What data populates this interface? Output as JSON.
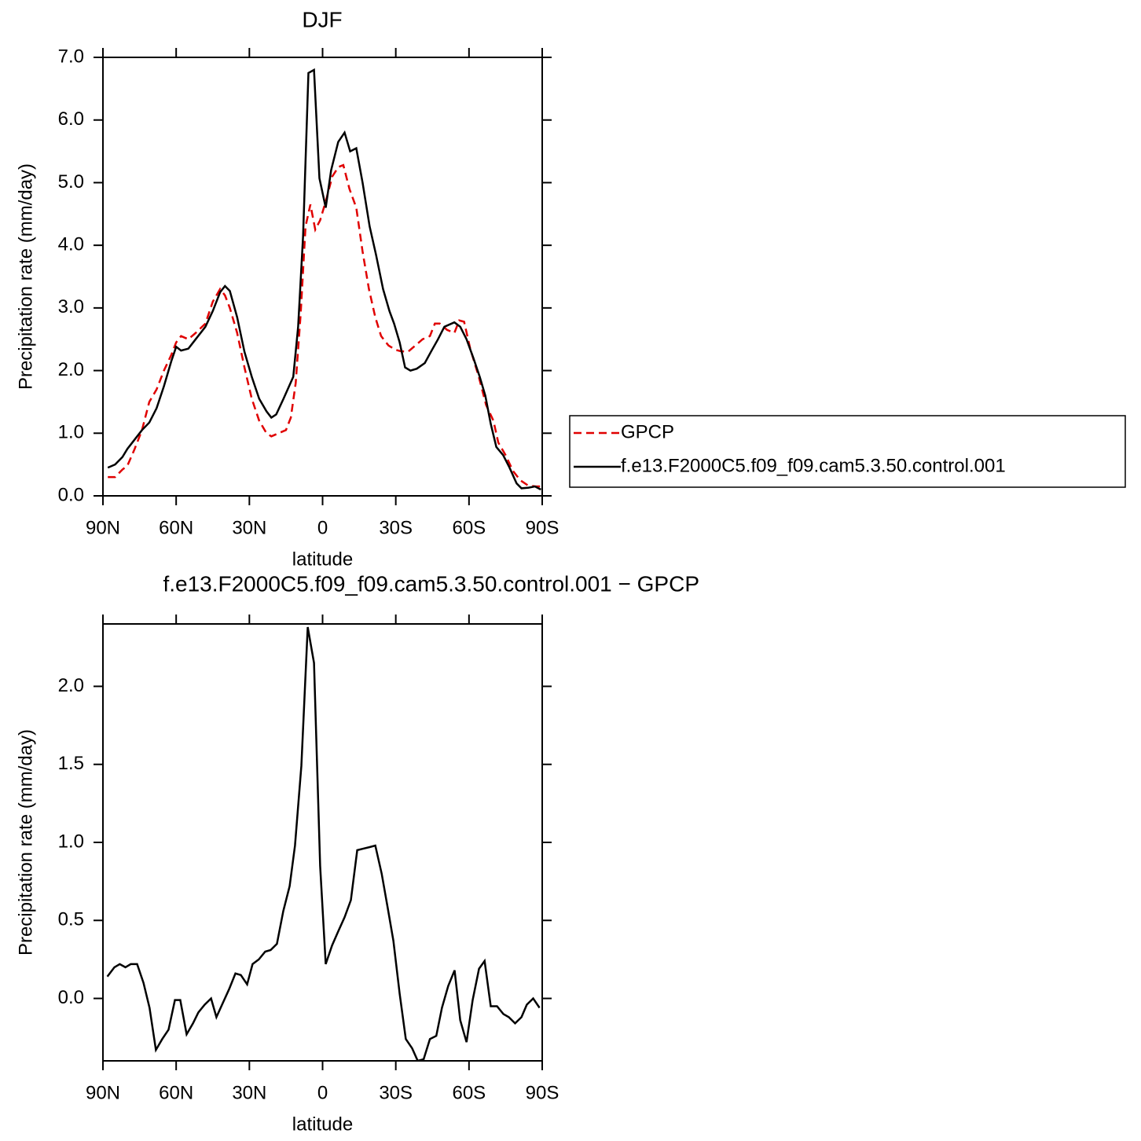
{
  "chart_data": [
    {
      "type": "line",
      "title": "DJF",
      "xlabel": "latitude",
      "ylabel": "Precipitation rate (mm/day)",
      "xlim": [
        90,
        -90
      ],
      "xticks": [
        {
          "value": 90,
          "label": "90N"
        },
        {
          "value": 60,
          "label": "60N"
        },
        {
          "value": 30,
          "label": "30N"
        },
        0,
        {
          "value": -30,
          "label": "30S"
        },
        {
          "value": -60,
          "label": "60S"
        },
        {
          "value": -90,
          "label": "90S"
        }
      ],
      "ylim": [
        0,
        7
      ],
      "yticks": [
        {
          "value": 0,
          "label": "0.0"
        },
        {
          "value": 1,
          "label": "1.0"
        },
        {
          "value": 2,
          "label": "2.0"
        },
        {
          "value": 3,
          "label": "3.0"
        },
        {
          "value": 4,
          "label": "4.0"
        },
        {
          "value": 5,
          "label": "5.0"
        },
        {
          "value": 6,
          "label": "6.0"
        },
        {
          "value": 7,
          "label": "7.0"
        }
      ],
      "legend": "right",
      "series": [
        {
          "name": "GPCP",
          "color": "#e00000",
          "dashed": true,
          "x": [
            88,
            85,
            82,
            80,
            77,
            74,
            71,
            68,
            65,
            62,
            60,
            58,
            55,
            52,
            48,
            45,
            42,
            40,
            38,
            35,
            32,
            29,
            26,
            23,
            21,
            18,
            15,
            13,
            11,
            9,
            7,
            5,
            3,
            1,
            -1.3,
            -4,
            -6.5,
            -8.5,
            -11,
            -13.8,
            -16.4,
            -19,
            -21.6,
            -24,
            -27,
            -30,
            -32,
            -35,
            -38,
            -41,
            -44,
            -46,
            -48,
            -51,
            -54,
            -56,
            -58,
            -60.5,
            -64,
            -67,
            -70,
            -72,
            -75,
            -78,
            -81,
            -84,
            -87,
            -89.5
          ],
          "values": [
            0.3,
            0.3,
            0.42,
            0.48,
            0.75,
            1.05,
            1.5,
            1.7,
            2.0,
            2.25,
            2.45,
            2.55,
            2.5,
            2.6,
            2.75,
            3.1,
            3.3,
            3.2,
            3.0,
            2.6,
            2.05,
            1.55,
            1.2,
            1.0,
            0.95,
            1.0,
            1.05,
            1.25,
            1.8,
            2.9,
            4.3,
            4.65,
            4.25,
            4.4,
            4.7,
            5.1,
            5.25,
            5.28,
            4.9,
            4.6,
            3.9,
            3.3,
            2.85,
            2.55,
            2.4,
            2.33,
            2.31,
            2.3,
            2.4,
            2.5,
            2.55,
            2.75,
            2.75,
            2.65,
            2.6,
            2.8,
            2.78,
            2.35,
            1.9,
            1.45,
            1.2,
            0.85,
            0.65,
            0.4,
            0.25,
            0.17,
            0.15,
            0.15
          ]
        },
        {
          "name": "f.e13.F2000C5.f09_f09.cam5.3.50.control.001",
          "color": "#000000",
          "dashed": false,
          "x": [
            88,
            85,
            82,
            80,
            77,
            74,
            71,
            68,
            65,
            62,
            60,
            58,
            55,
            52,
            48,
            45,
            42,
            40,
            38,
            35,
            32,
            29,
            26,
            23,
            21,
            19,
            16,
            12,
            10,
            8,
            5.8,
            3.5,
            1.3,
            -1.3,
            -3.5,
            -6.4,
            -9,
            -11.3,
            -13.8,
            -16.4,
            -19.3,
            -21.9,
            -24.8,
            -27.4,
            -29.3,
            -31.6,
            -33.8,
            -36,
            -38.6,
            -41.9,
            -44.4,
            -47.3,
            -49.9,
            -54,
            -56.4,
            -59,
            -61.8,
            -64.4,
            -66.7,
            -68.9,
            -71.2,
            -74,
            -76.6,
            -79.5,
            -81.5,
            -84.4,
            -87,
            -89.5
          ],
          "values": [
            0.45,
            0.5,
            0.62,
            0.75,
            0.9,
            1.05,
            1.17,
            1.4,
            1.75,
            2.15,
            2.38,
            2.32,
            2.35,
            2.5,
            2.7,
            2.95,
            3.25,
            3.35,
            3.27,
            2.85,
            2.3,
            1.9,
            1.55,
            1.35,
            1.25,
            1.3,
            1.55,
            1.9,
            2.7,
            4.15,
            6.75,
            6.8,
            5.07,
            4.6,
            5.2,
            5.65,
            5.8,
            5.5,
            5.55,
            5.0,
            4.3,
            3.85,
            3.3,
            2.95,
            2.75,
            2.45,
            2.05,
            2.0,
            2.03,
            2.12,
            2.3,
            2.5,
            2.7,
            2.77,
            2.7,
            2.5,
            2.2,
            1.9,
            1.6,
            1.15,
            0.78,
            0.65,
            0.45,
            0.2,
            0.12,
            0.13,
            0.15,
            0.1
          ]
        }
      ]
    },
    {
      "type": "line",
      "title": "f.e13.F2000C5.f09_f09.cam5.3.50.control.001 − GPCP",
      "xlabel": "latitude",
      "ylabel": "Precipitation rate (mm/day)",
      "xlim": [
        90,
        -90
      ],
      "xticks": [
        {
          "value": 90,
          "label": "90N"
        },
        {
          "value": 60,
          "label": "60N"
        },
        {
          "value": 30,
          "label": "30N"
        },
        0,
        {
          "value": -30,
          "label": "30S"
        },
        {
          "value": -60,
          "label": "60S"
        },
        {
          "value": -90,
          "label": "90S"
        }
      ],
      "ylim": [
        -0.4,
        2.4
      ],
      "yticks": [
        {
          "value": 0,
          "label": "0.0"
        },
        {
          "value": 0.5,
          "label": "0.5"
        },
        {
          "value": 1,
          "label": "1.0"
        },
        {
          "value": 1.5,
          "label": "1.5"
        },
        {
          "value": 2,
          "label": "2.0"
        }
      ],
      "color": "#000000",
      "x": [
        88.2,
        85.3,
        83.1,
        80.8,
        78.6,
        76,
        73.4,
        70.9,
        68.3,
        65.7,
        63.1,
        60.5,
        58.3,
        55.7,
        53.1,
        50.9,
        48.3,
        45.7,
        43.5,
        40.9,
        38.3,
        35.7,
        33.5,
        30.9,
        28.7,
        26.1,
        23.5,
        21.3,
        18.7,
        16.1,
        13.5,
        11.3,
        8.7,
        6.1,
        3.5,
        1,
        -1.3,
        -3.9,
        -6.4,
        -9,
        -11.6,
        -14.2,
        -16.7,
        -19.3,
        -21.6,
        -24.2,
        -26.7,
        -29,
        -31.6,
        -34.1,
        -36.7,
        -39,
        -41.4,
        -44,
        -46.6,
        -48.9,
        -51.5,
        -54.1,
        -56.4,
        -59,
        -61.5,
        -64.1,
        -66.4,
        -68.9,
        -71.5,
        -74.1,
        -76.3,
        -78.9,
        -81.5,
        -83.7,
        -86.3,
        -88.9
      ],
      "values": [
        0.14,
        0.2,
        0.22,
        0.2,
        0.22,
        0.22,
        0.1,
        -0.06,
        -0.33,
        -0.26,
        -0.2,
        -0.01,
        -0.01,
        -0.23,
        -0.16,
        -0.09,
        -0.04,
        0.0,
        -0.12,
        -0.03,
        0.06,
        0.16,
        0.15,
        0.09,
        0.22,
        0.25,
        0.3,
        0.31,
        0.35,
        0.56,
        0.72,
        0.98,
        1.49,
        2.38,
        2.15,
        0.85,
        0.22,
        0.34,
        0.43,
        0.52,
        0.63,
        0.95,
        0.96,
        0.97,
        0.98,
        0.8,
        0.58,
        0.37,
        0.03,
        -0.26,
        -0.32,
        -0.4,
        -0.39,
        -0.26,
        -0.24,
        -0.06,
        0.08,
        0.18,
        -0.14,
        -0.28,
        -0.01,
        0.19,
        0.24,
        -0.05,
        -0.05,
        -0.1,
        -0.12,
        -0.16,
        -0.12,
        -0.04,
        0.0,
        -0.06
      ]
    }
  ]
}
